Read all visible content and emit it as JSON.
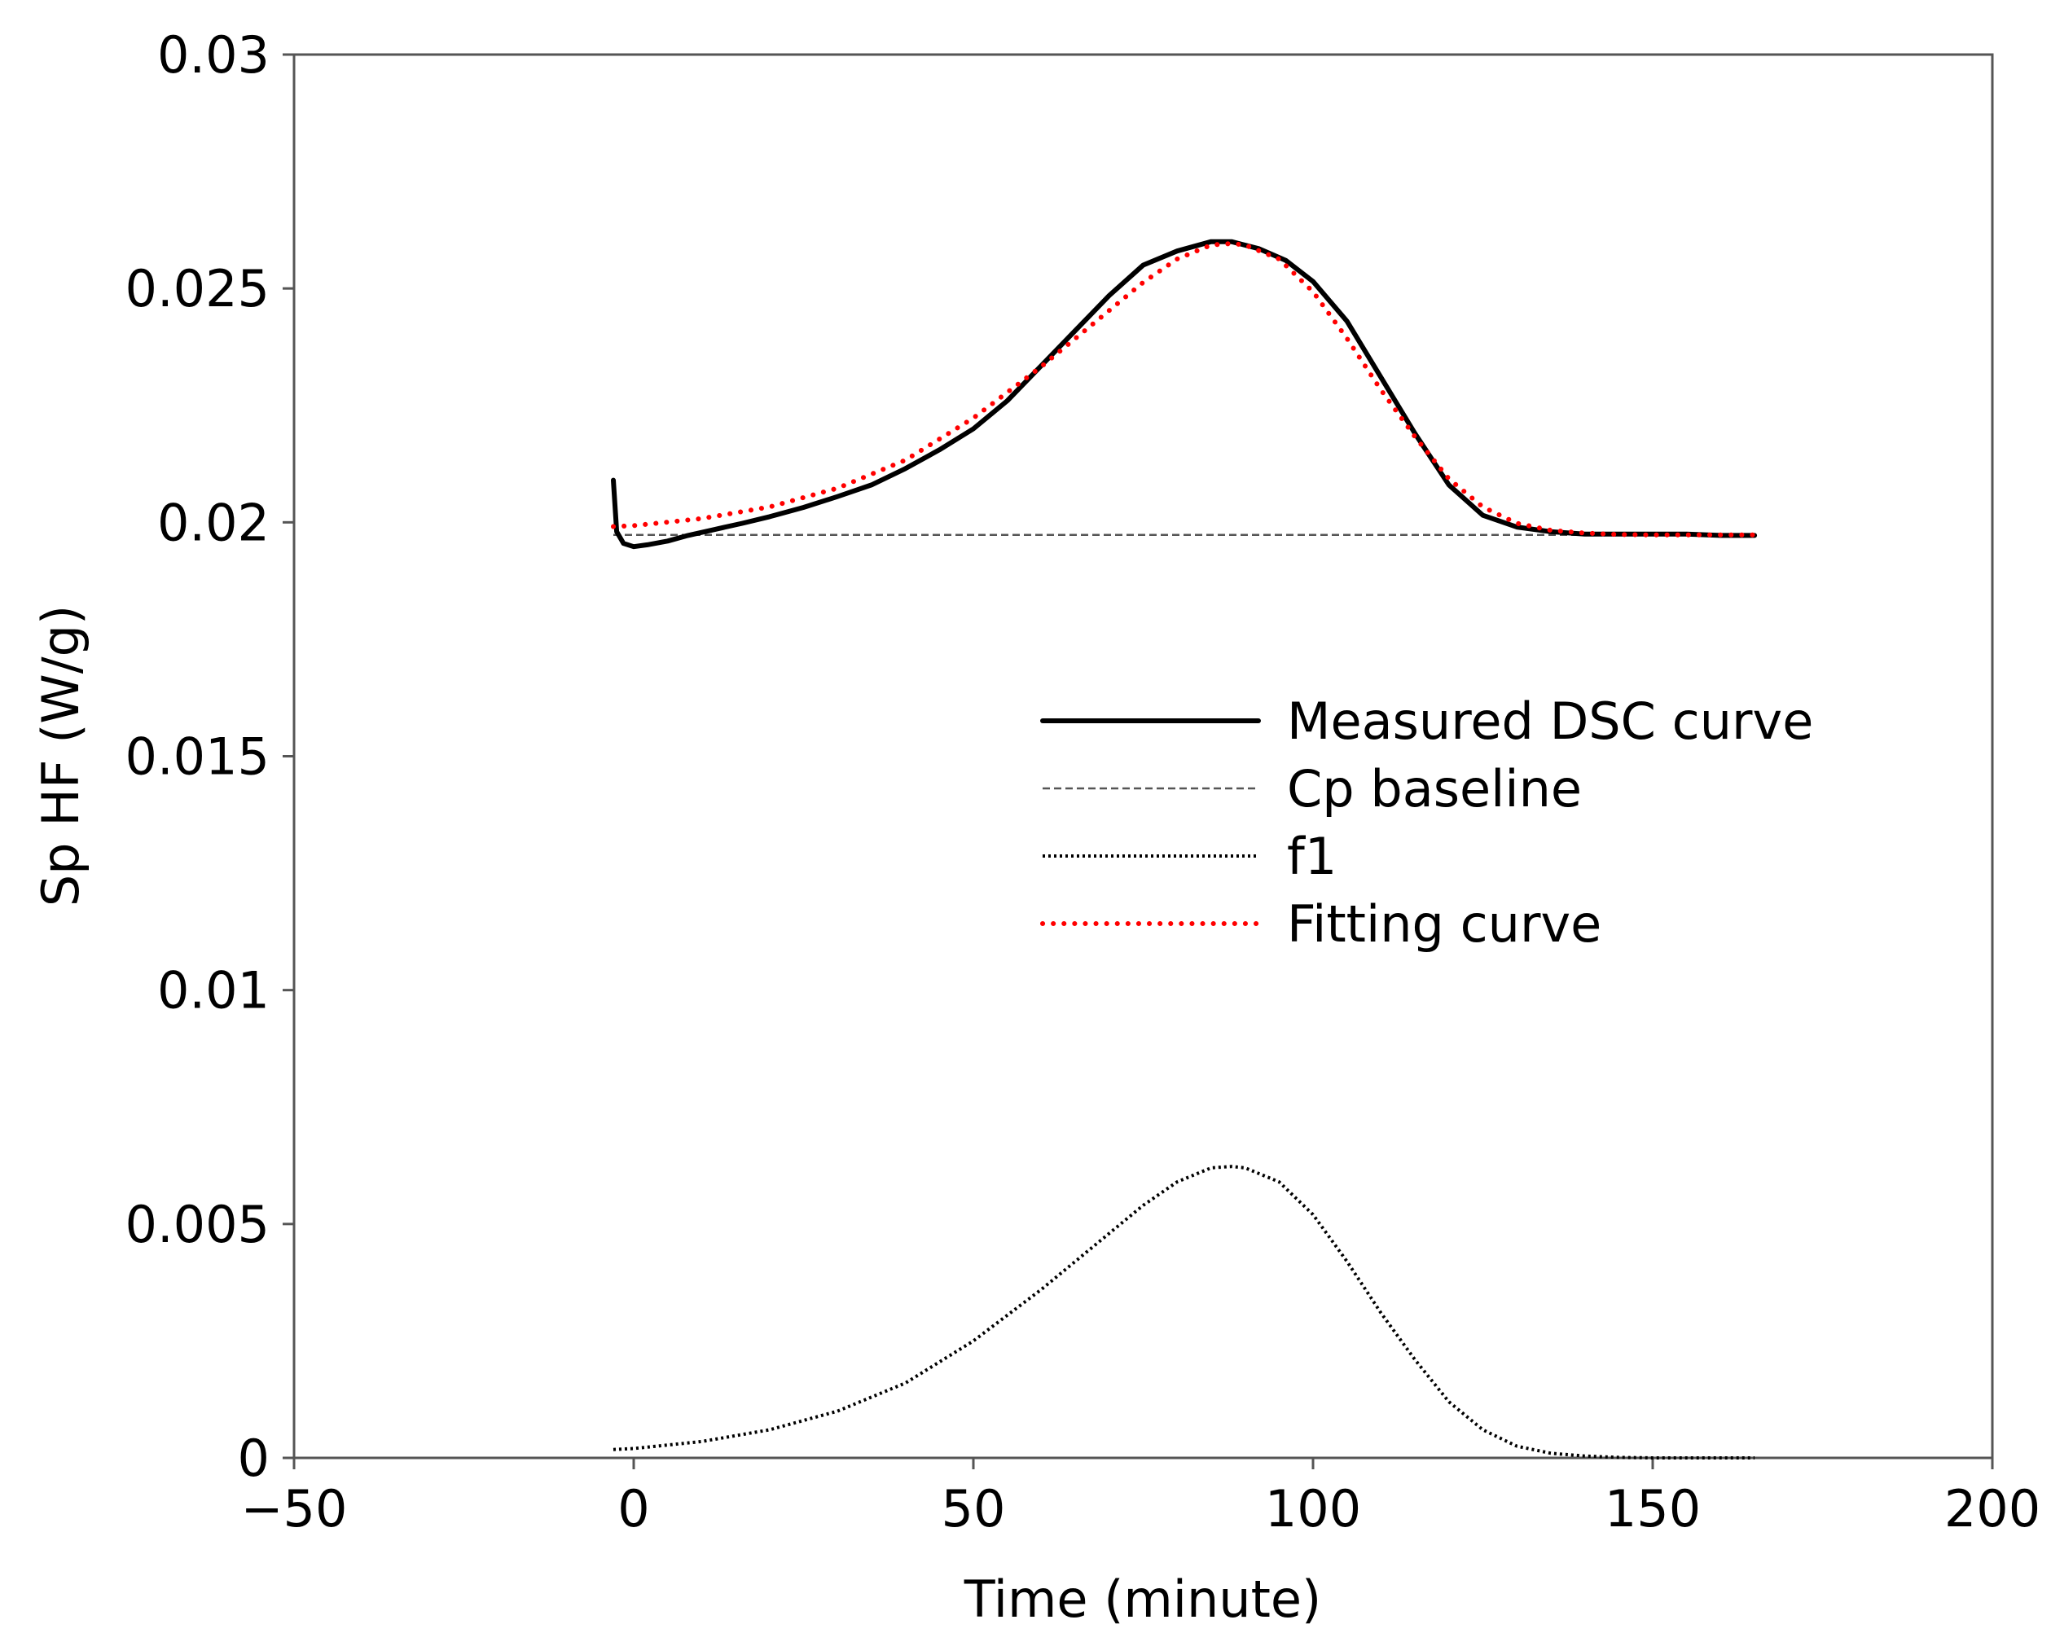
{
  "chart_data": {
    "type": "line",
    "title": "",
    "xlabel": "Time (minute)",
    "ylabel": "Sp HF (W/g)",
    "xlim": [
      -50,
      200
    ],
    "ylim": [
      0,
      0.03
    ],
    "x_ticks": [
      -50,
      0,
      50,
      100,
      150,
      200
    ],
    "x_tick_labels": [
      "−50",
      "0",
      "50",
      "100",
      "150",
      "200"
    ],
    "y_ticks": [
      0,
      0.005,
      0.01,
      0.015,
      0.02,
      0.025,
      0.03
    ],
    "y_tick_labels": [
      "0",
      "0.005",
      "0.01",
      "0.015",
      "0.02",
      "0.025",
      "0.03"
    ],
    "legend_position": "center-right",
    "series": [
      {
        "name": "Measured DSC curve",
        "color": "#000000",
        "style": "solid",
        "x": [
          -3,
          -2.5,
          -1.5,
          0,
          2,
          5,
          8,
          12,
          16,
          20,
          25,
          30,
          35,
          40,
          45,
          50,
          55,
          60,
          65,
          70,
          75,
          80,
          85,
          88,
          92,
          96,
          100,
          105,
          110,
          115,
          120,
          125,
          130,
          135,
          140,
          145,
          150,
          155,
          160,
          165
        ],
        "y": [
          0.0209,
          0.0198,
          0.01955,
          0.01948,
          0.01952,
          0.0196,
          0.01972,
          0.01985,
          0.01998,
          0.02012,
          0.02032,
          0.02055,
          0.0208,
          0.02115,
          0.02155,
          0.022,
          0.0226,
          0.02335,
          0.0241,
          0.02485,
          0.0255,
          0.0258,
          0.026,
          0.026,
          0.02585,
          0.0256,
          0.02515,
          0.0243,
          0.0231,
          0.0219,
          0.0208,
          0.02015,
          0.0199,
          0.0198,
          0.01975,
          0.01975,
          0.01975,
          0.01975,
          0.01972,
          0.01972
        ]
      },
      {
        "name": "Cp baseline",
        "color": "#555555",
        "style": "dashed",
        "x": [
          -3,
          165
        ],
        "y": [
          0.01973,
          0.01973
        ]
      },
      {
        "name": "f1",
        "color": "#000000",
        "style": "dotted",
        "x": [
          -3,
          0,
          10,
          20,
          30,
          40,
          50,
          60,
          70,
          75,
          80,
          85,
          88,
          90,
          95,
          100,
          105,
          110,
          115,
          120,
          125,
          130,
          135,
          140,
          145,
          150,
          155,
          160,
          165
        ],
        "y": [
          0.00018,
          0.0002,
          0.00035,
          0.0006,
          0.001,
          0.0016,
          0.0025,
          0.0036,
          0.0048,
          0.0054,
          0.0059,
          0.0062,
          0.00623,
          0.0062,
          0.0059,
          0.0052,
          0.0042,
          0.0031,
          0.0021,
          0.0012,
          0.0006,
          0.00025,
          0.0001,
          4e-05,
          1e-05,
          0.0,
          0.0,
          0.0,
          0.0
        ]
      },
      {
        "name": "Fitting curve",
        "color": "#ff0000",
        "style": "dotted",
        "x": [
          -3,
          0,
          10,
          20,
          30,
          40,
          50,
          60,
          70,
          75,
          80,
          85,
          88,
          90,
          95,
          100,
          105,
          110,
          115,
          120,
          125,
          130,
          135,
          140,
          145,
          150,
          155,
          160,
          165
        ],
        "y": [
          0.01991,
          0.01993,
          0.02008,
          0.02033,
          0.02073,
          0.02133,
          0.02223,
          0.02333,
          0.02453,
          0.02513,
          0.02563,
          0.02593,
          0.02596,
          0.02593,
          0.02563,
          0.02493,
          0.02393,
          0.02283,
          0.02183,
          0.02093,
          0.02033,
          0.01998,
          0.01983,
          0.01977,
          0.01974,
          0.01973,
          0.01973,
          0.01973,
          0.01973
        ]
      }
    ]
  }
}
